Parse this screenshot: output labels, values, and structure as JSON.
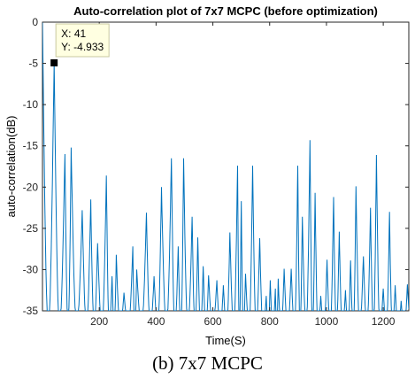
{
  "chart_data": {
    "type": "line",
    "title": "Auto-correlation plot of 7x7 MCPC (before optimization)",
    "xlabel": "Time(S)",
    "ylabel": "auto-correlation(dB)",
    "xlim": [
      0,
      1290
    ],
    "ylim": [
      -35,
      0
    ],
    "x_ticks": [
      200,
      400,
      600,
      800,
      1000,
      1200
    ],
    "y_ticks": [
      0,
      -5,
      -10,
      -15,
      -20,
      -25,
      -30,
      -35
    ],
    "grid": false,
    "line_color": "#0072BD",
    "series": [
      {
        "peaks": [
          [
            0,
            0
          ],
          [
            41,
            -4.933
          ],
          [
            79,
            -16
          ],
          [
            101,
            -15.2
          ],
          [
            140,
            -22.8
          ],
          [
            170,
            -21.5
          ],
          [
            194,
            -26.8
          ],
          [
            225,
            -18.6
          ],
          [
            245,
            -30.8
          ],
          [
            260,
            -28.2
          ],
          [
            287,
            -32.8
          ],
          [
            318,
            -27.2
          ],
          [
            332,
            -30
          ],
          [
            366,
            -23.1
          ],
          [
            393,
            -30.8
          ],
          [
            419,
            -20
          ],
          [
            454,
            -16.5
          ],
          [
            478,
            -27.2
          ],
          [
            497,
            -16.5
          ],
          [
            527,
            -23.6
          ],
          [
            547,
            -26.1
          ],
          [
            566,
            -29.6
          ],
          [
            585,
            -30.7
          ],
          [
            614,
            -31.3
          ],
          [
            637,
            -31.9
          ],
          [
            660,
            -25.5
          ],
          [
            687,
            -17.4
          ],
          [
            700,
            -21.7
          ],
          [
            715,
            -30.5
          ],
          [
            740,
            -17.4
          ],
          [
            765,
            -26.2
          ],
          [
            788,
            -33.2
          ],
          [
            802,
            -31.3
          ],
          [
            820,
            -32.3
          ],
          [
            830,
            -31.1
          ],
          [
            851,
            -29.9
          ],
          [
            876,
            -29.9
          ],
          [
            899,
            -17.4
          ],
          [
            915,
            -23.6
          ],
          [
            942,
            -14.3
          ],
          [
            960,
            -20.7
          ],
          [
            980,
            -33.2
          ],
          [
            1002,
            -28.8
          ],
          [
            1025,
            -21.2
          ],
          [
            1045,
            -25.4
          ],
          [
            1067,
            -32.5
          ],
          [
            1085,
            -28.9
          ],
          [
            1104,
            -19.9
          ],
          [
            1130,
            -28.4
          ],
          [
            1155,
            -22.5
          ],
          [
            1176,
            -16.1
          ],
          [
            1200,
            -32.3
          ],
          [
            1222,
            -23
          ],
          [
            1242,
            -31.9
          ],
          [
            1263,
            -33.8
          ],
          [
            1285,
            -31.8
          ]
        ]
      }
    ],
    "datatip": {
      "marker_x": 41,
      "marker_y": -4.933,
      "lines": [
        "X: 41",
        "Y: -4.933"
      ]
    }
  },
  "caption": "(b) 7x7 MCPC"
}
